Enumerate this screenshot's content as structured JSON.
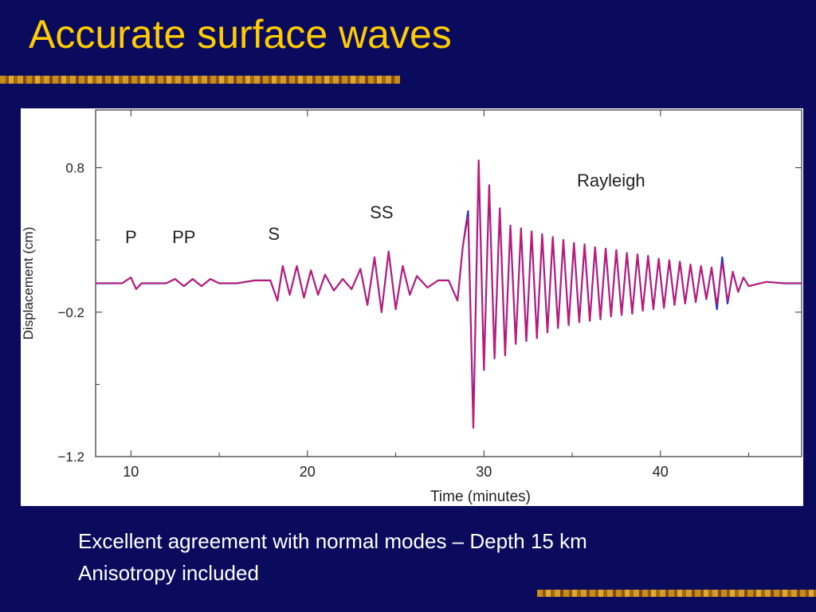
{
  "slide": {
    "title": "Accurate surface waves",
    "caption_line1": "Excellent agreement with normal modes – Depth 15 km",
    "caption_line2": "Anisotropy included"
  },
  "colors": {
    "background": "#0b0b5e",
    "title": "#ffcc00",
    "series_synthetic": "#dd1166",
    "series_normal_modes": "#2233cc"
  },
  "chart_data": {
    "type": "line",
    "xlabel": "Time (minutes)",
    "ylabel": "Displacement (cm)",
    "xlim": [
      8,
      48
    ],
    "ylim": [
      -1.2,
      1.2
    ],
    "xticks": [
      10,
      20,
      30,
      40
    ],
    "yticks": [
      0.8,
      -0.2,
      -1.2
    ],
    "ytick_labels": [
      "0.8",
      "−0.2",
      "−1.2"
    ],
    "grid": false,
    "annotations": [
      {
        "text": "P",
        "x": 10.0,
        "y": 0.28
      },
      {
        "text": "PP",
        "x": 13.0,
        "y": 0.28
      },
      {
        "text": "S",
        "x": 18.1,
        "y": 0.3
      },
      {
        "text": "SS",
        "x": 24.2,
        "y": 0.45
      },
      {
        "text": "Rayleigh",
        "x": 37.2,
        "y": 0.67
      }
    ],
    "series": [
      {
        "color": "#2233cc",
        "x": [
          8,
          9.5,
          10,
          10.3,
          10.6,
          11,
          12,
          12.5,
          13,
          13.5,
          14,
          14.5,
          15,
          16,
          17,
          17.9,
          18.3,
          18.6,
          19,
          19.4,
          19.8,
          20.2,
          20.6,
          21,
          21.5,
          22,
          22.5,
          23,
          23.4,
          23.8,
          24.2,
          24.6,
          25,
          25.4,
          25.8,
          26.2,
          26.8,
          27.4,
          28,
          28.5,
          28.8,
          29.1,
          29.4,
          29.7,
          30.0,
          30.3,
          30.6,
          30.9,
          31.2,
          31.5,
          31.8,
          32.1,
          32.4,
          32.7,
          33.0,
          33.3,
          33.6,
          33.9,
          34.2,
          34.5,
          34.8,
          35.1,
          35.4,
          35.7,
          36.0,
          36.3,
          36.6,
          36.9,
          37.2,
          37.5,
          37.8,
          38.1,
          38.4,
          38.7,
          39.0,
          39.3,
          39.6,
          39.9,
          40.2,
          40.5,
          40.8,
          41.1,
          41.4,
          41.7,
          42.0,
          42.3,
          42.6,
          42.9,
          43.2,
          43.5,
          43.8,
          44.1,
          44.4,
          44.7,
          45.0,
          46.0,
          47.0,
          48.0
        ],
        "y": [
          0.0,
          0.0,
          0.04,
          -0.04,
          0.0,
          0.0,
          0.0,
          0.03,
          -0.02,
          0.03,
          -0.02,
          0.03,
          0.0,
          0.0,
          0.02,
          0.02,
          -0.12,
          0.12,
          -0.08,
          0.12,
          -0.1,
          0.09,
          -0.08,
          0.06,
          -0.05,
          0.03,
          -0.04,
          0.1,
          -0.15,
          0.18,
          -0.2,
          0.22,
          -0.18,
          0.12,
          -0.08,
          0.05,
          -0.03,
          0.02,
          0.02,
          -0.12,
          0.25,
          0.5,
          -1.0,
          0.85,
          -0.6,
          0.68,
          -0.52,
          0.52,
          -0.5,
          0.4,
          -0.42,
          0.38,
          -0.4,
          0.36,
          -0.38,
          0.34,
          -0.34,
          0.32,
          -0.31,
          0.3,
          -0.29,
          0.28,
          -0.27,
          0.27,
          -0.26,
          0.25,
          -0.25,
          0.24,
          -0.23,
          0.23,
          -0.22,
          0.21,
          -0.21,
          0.2,
          -0.19,
          0.19,
          -0.18,
          0.17,
          -0.17,
          0.16,
          -0.15,
          0.15,
          -0.14,
          0.13,
          -0.13,
          0.12,
          -0.11,
          0.11,
          -0.18,
          0.18,
          -0.14,
          0.08,
          -0.06,
          0.04,
          -0.02,
          0.01,
          0.0,
          0.0
        ]
      },
      {
        "color": "#dd1166",
        "x": [
          8,
          9.5,
          10,
          10.3,
          10.6,
          11,
          12,
          12.5,
          13,
          13.5,
          14,
          14.5,
          15,
          16,
          17,
          17.9,
          18.3,
          18.6,
          19,
          19.4,
          19.8,
          20.2,
          20.6,
          21,
          21.5,
          22,
          22.5,
          23,
          23.4,
          23.8,
          24.2,
          24.6,
          25,
          25.4,
          25.8,
          26.2,
          26.8,
          27.4,
          28,
          28.5,
          28.8,
          29.1,
          29.4,
          29.7,
          30.0,
          30.3,
          30.6,
          30.9,
          31.2,
          31.5,
          31.8,
          32.1,
          32.4,
          32.7,
          33.0,
          33.3,
          33.6,
          33.9,
          34.2,
          34.5,
          34.8,
          35.1,
          35.4,
          35.7,
          36.0,
          36.3,
          36.6,
          36.9,
          37.2,
          37.5,
          37.8,
          38.1,
          38.4,
          38.7,
          39.0,
          39.3,
          39.6,
          39.9,
          40.2,
          40.5,
          40.8,
          41.1,
          41.4,
          41.7,
          42.0,
          42.3,
          42.6,
          42.9,
          43.2,
          43.5,
          43.8,
          44.1,
          44.4,
          44.7,
          45.0,
          46.0,
          47.0,
          48.0
        ],
        "y": [
          0.0,
          0.0,
          0.04,
          -0.04,
          0.0,
          0.0,
          0.0,
          0.03,
          -0.02,
          0.03,
          -0.02,
          0.03,
          0.0,
          0.0,
          0.02,
          0.02,
          -0.12,
          0.12,
          -0.08,
          0.12,
          -0.1,
          0.09,
          -0.08,
          0.06,
          -0.05,
          0.03,
          -0.04,
          0.1,
          -0.15,
          0.18,
          -0.2,
          0.22,
          -0.18,
          0.12,
          -0.08,
          0.05,
          -0.03,
          0.02,
          0.02,
          -0.12,
          0.25,
          0.46,
          -1.0,
          0.85,
          -0.6,
          0.68,
          -0.52,
          0.52,
          -0.5,
          0.4,
          -0.42,
          0.38,
          -0.4,
          0.36,
          -0.38,
          0.34,
          -0.34,
          0.32,
          -0.31,
          0.3,
          -0.29,
          0.28,
          -0.27,
          0.27,
          -0.26,
          0.25,
          -0.25,
          0.24,
          -0.23,
          0.23,
          -0.22,
          0.21,
          -0.21,
          0.2,
          -0.19,
          0.19,
          -0.18,
          0.17,
          -0.17,
          0.16,
          -0.15,
          0.15,
          -0.14,
          0.13,
          -0.13,
          0.12,
          -0.11,
          0.11,
          -0.14,
          0.14,
          -0.12,
          0.08,
          -0.06,
          0.04,
          -0.02,
          0.01,
          0.0,
          0.0
        ]
      }
    ]
  }
}
